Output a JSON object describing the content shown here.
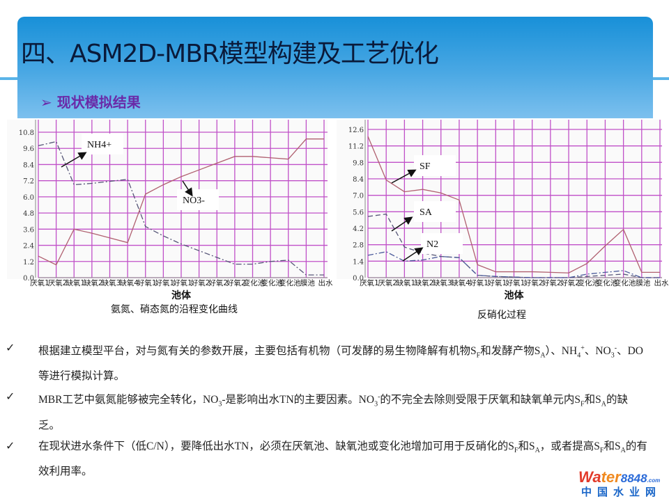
{
  "slide": {
    "title": "四、ASM2D-MBR模型构建及工艺优化",
    "subtitle": "➢ 现状模拟结果"
  },
  "chart_data": [
    {
      "type": "line",
      "caption": "氨氮、硝态氮的沿程变化曲线",
      "xlabel": "池体",
      "ylabel": "",
      "categories": [
        "厌氧1",
        "厌氧2",
        "缺氧1",
        "缺氧2",
        "缺氧3",
        "缺氧4",
        "好氧1",
        "好氧1",
        "好氧1",
        "好氧2",
        "好氧2",
        "好氧2",
        "变化池",
        "变化池",
        "变化池",
        "膜池",
        "出水"
      ],
      "yticks": [
        "0.0",
        "1.2",
        "2.4",
        "3.6",
        "4.8",
        "6.0",
        "7.2",
        "8.4",
        "9.6",
        "10.8"
      ],
      "ylim": [
        0,
        10.8
      ],
      "grid": true,
      "series": [
        {
          "name": "NH4+",
          "style": "dashdot",
          "color": "#555577",
          "values": [
            9.8,
            10.1,
            6.9,
            7.0,
            7.15,
            7.3,
            3.8,
            3.1,
            2.5,
            2.0,
            1.5,
            1.0,
            1.0,
            1.2,
            1.3,
            0.2,
            0.2
          ]
        },
        {
          "name": "NO3-",
          "style": "solid",
          "color": "#b06070",
          "values": [
            1.6,
            0.95,
            3.6,
            3.3,
            2.95,
            2.6,
            6.2,
            6.9,
            7.5,
            8.0,
            8.5,
            9.0,
            9.0,
            8.9,
            8.8,
            10.3,
            10.3
          ]
        }
      ]
    },
    {
      "type": "line",
      "caption": "反硝化过程",
      "xlabel": "池体",
      "ylabel": "",
      "categories": [
        "厌氧1",
        "厌氧2",
        "缺氧1",
        "缺氧2",
        "缺氧3",
        "缺氧4",
        "好氧1",
        "好氧1",
        "好氧1",
        "好氧2",
        "好氧2",
        "好氧2",
        "变化池",
        "变化池",
        "变化池",
        "膜池",
        "出水"
      ],
      "yticks": [
        "0.0",
        "1.4",
        "2.8",
        "4.2",
        "5.6",
        "7.0",
        "8.4",
        "9.8",
        "11.2",
        "12.6"
      ],
      "ylim": [
        0,
        12.6
      ],
      "grid": true,
      "series": [
        {
          "name": "SF",
          "style": "solid",
          "color": "#b06070",
          "values": [
            12.0,
            8.3,
            7.3,
            7.5,
            7.2,
            6.6,
            1.1,
            0.5,
            0.5,
            0.5,
            0.45,
            0.4,
            1.2,
            2.7,
            4.1,
            0.45,
            0.45
          ]
        },
        {
          "name": "SA",
          "style": "dashed",
          "color": "#555577",
          "values": [
            5.2,
            5.4,
            2.6,
            2.1,
            1.8,
            1.7,
            0.2,
            0.1,
            0.05,
            0.0,
            0.0,
            0.0,
            0.1,
            0.2,
            0.3,
            0.0,
            0.0
          ]
        },
        {
          "name": "N2",
          "style": "dashdot",
          "color": "#4a5a9a",
          "values": [
            1.9,
            2.2,
            1.4,
            1.5,
            1.8,
            1.7,
            0.2,
            0.1,
            0.05,
            0.0,
            0.0,
            0.0,
            0.3,
            0.45,
            0.6,
            0.0,
            0.0
          ]
        }
      ]
    }
  ],
  "bullets": [
    [
      {
        "t": "根据建立模型平台，对与氮有关的参数开展，主要包括有机物（可发酵的易生物降解有机物S"
      },
      {
        "t": "F",
        "sub": 1
      },
      {
        "t": "和发酵产物S"
      },
      {
        "t": "A",
        "sub": 1
      },
      {
        "t": "）、NH"
      },
      {
        "t": "4",
        "sub": 1
      },
      {
        "t": "+",
        "sup": 1
      },
      {
        "t": "、NO"
      },
      {
        "t": "3",
        "sub": 1
      },
      {
        "t": "-",
        "sup": 1
      },
      {
        "t": "、DO等进行模拟计算。"
      }
    ],
    [
      {
        "t": "MBR工艺中氨氮能够被完全转化，NO"
      },
      {
        "t": "3",
        "sub": 1
      },
      {
        "t": "-是影响出水TN的主要因素。NO"
      },
      {
        "t": "3",
        "sub": 1
      },
      {
        "t": "-",
        "sup": 1
      },
      {
        "t": "的不完全去除则受限于厌氧和缺氧单元内S"
      },
      {
        "t": "F",
        "sub": 1
      },
      {
        "t": "和S"
      },
      {
        "t": "A",
        "sub": 1
      },
      {
        "t": "的缺乏。"
      }
    ],
    [
      {
        "t": "在现状进水条件下（低C/N），要降低出水TN，必须在厌氧池、缺氧池或变化池增加可用于反硝化的S"
      },
      {
        "t": "F",
        "sub": 1
      },
      {
        "t": "和S"
      },
      {
        "t": "A",
        "sub": 1
      },
      {
        "t": "，或者提高S"
      },
      {
        "t": "F",
        "sub": 1
      },
      {
        "t": "和S"
      },
      {
        "t": "A",
        "sub": 1
      },
      {
        "t": "的有效利用率。"
      }
    ]
  ],
  "check_icon": "✓",
  "logo": {
    "word": "Wa",
    "word2": "ter",
    "num": "8848",
    "dom": ".com",
    "cn": "中国水业网"
  }
}
